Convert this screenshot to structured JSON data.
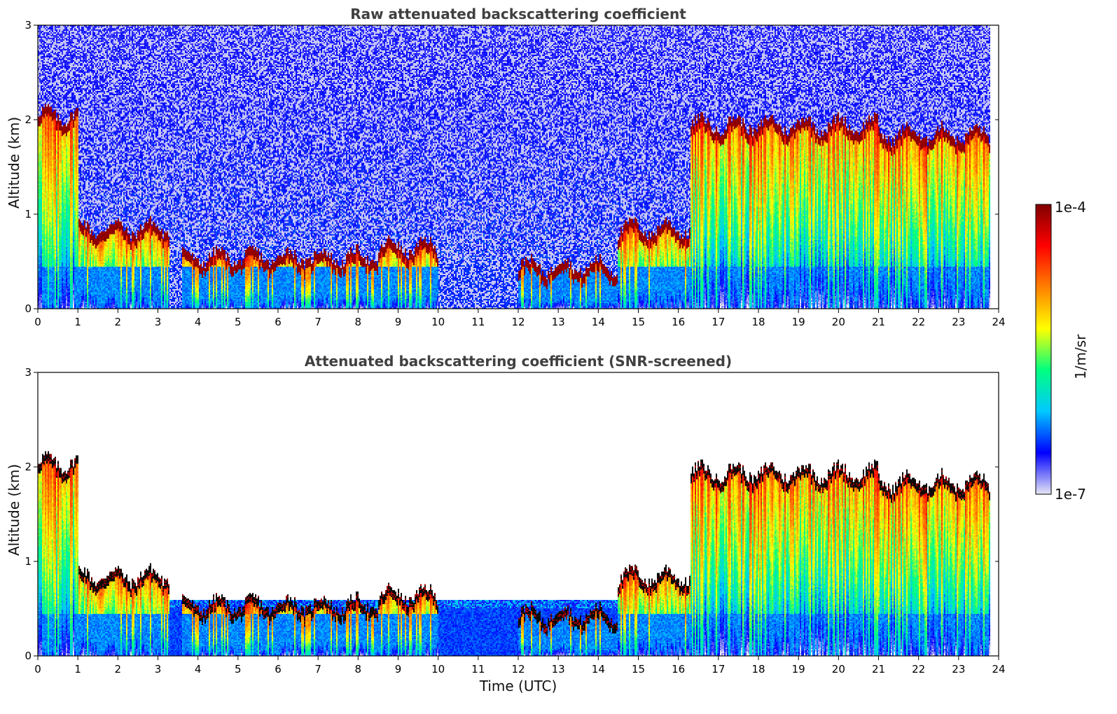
{
  "chart_data": [
    {
      "type": "heatmap",
      "title": "Raw attenuated backscattering coefficient",
      "xlabel": "",
      "ylabel": "Altitude (km)",
      "xlim": [
        0,
        24
      ],
      "ylim": [
        0,
        3
      ],
      "xticks": [
        "0",
        "1",
        "2",
        "3",
        "4",
        "5",
        "6",
        "7",
        "8",
        "9",
        "10",
        "11",
        "12",
        "13",
        "14",
        "15",
        "16",
        "17",
        "18",
        "19",
        "20",
        "21",
        "22",
        "23",
        "24"
      ],
      "yticks": [
        "0",
        "1",
        "2",
        "3"
      ],
      "screened": false,
      "cloud_layers": [
        {
          "t": [
            0.0,
            1.0
          ],
          "alt_km": 2.0
        },
        {
          "t": [
            1.0,
            3.3
          ],
          "alt_km": 0.8
        },
        {
          "t": [
            3.6,
            8.5
          ],
          "alt_km": 0.5
        },
        {
          "t": [
            8.5,
            10.0
          ],
          "alt_km": 0.6
        },
        {
          "t": [
            12.0,
            14.5
          ],
          "alt_km": 0.4
        },
        {
          "t": [
            14.5,
            16.3
          ],
          "alt_km": 0.8
        },
        {
          "t": [
            16.3,
            21.0
          ],
          "alt_km": 1.9
        },
        {
          "t": [
            21.0,
            23.8
          ],
          "alt_km": 1.8
        }
      ]
    },
    {
      "type": "heatmap",
      "title": "Attenuated backscattering coefficient (SNR-screened)",
      "xlabel": "Time (UTC)",
      "ylabel": "Altitude (km)",
      "xlim": [
        0,
        24
      ],
      "ylim": [
        0,
        3
      ],
      "xticks": [
        "0",
        "1",
        "2",
        "3",
        "4",
        "5",
        "6",
        "7",
        "8",
        "9",
        "10",
        "11",
        "12",
        "13",
        "14",
        "15",
        "16",
        "17",
        "18",
        "19",
        "20",
        "21",
        "22",
        "23",
        "24"
      ],
      "yticks": [
        "0",
        "1",
        "2",
        "3"
      ],
      "screened": true,
      "cloud_layers": [
        {
          "t": [
            0.0,
            1.0
          ],
          "alt_km": 2.0
        },
        {
          "t": [
            1.0,
            3.3
          ],
          "alt_km": 0.8
        },
        {
          "t": [
            3.6,
            8.5
          ],
          "alt_km": 0.5
        },
        {
          "t": [
            8.5,
            10.0
          ],
          "alt_km": 0.6
        },
        {
          "t": [
            12.0,
            14.5
          ],
          "alt_km": 0.4
        },
        {
          "t": [
            14.5,
            16.3
          ],
          "alt_km": 0.8
        },
        {
          "t": [
            16.3,
            21.0
          ],
          "alt_km": 1.9
        },
        {
          "t": [
            21.0,
            23.8
          ],
          "alt_km": 1.8
        }
      ]
    }
  ],
  "colorbar": {
    "label": "1/m/sr",
    "min_label": "1e-7",
    "max_label": "1e-4",
    "scale": "log",
    "colormap": "jet",
    "colors": [
      "#e6e6f5",
      "#0000ff",
      "#00c8ff",
      "#00ff80",
      "#ffff00",
      "#ff8000",
      "#ff0000",
      "#800000"
    ]
  }
}
